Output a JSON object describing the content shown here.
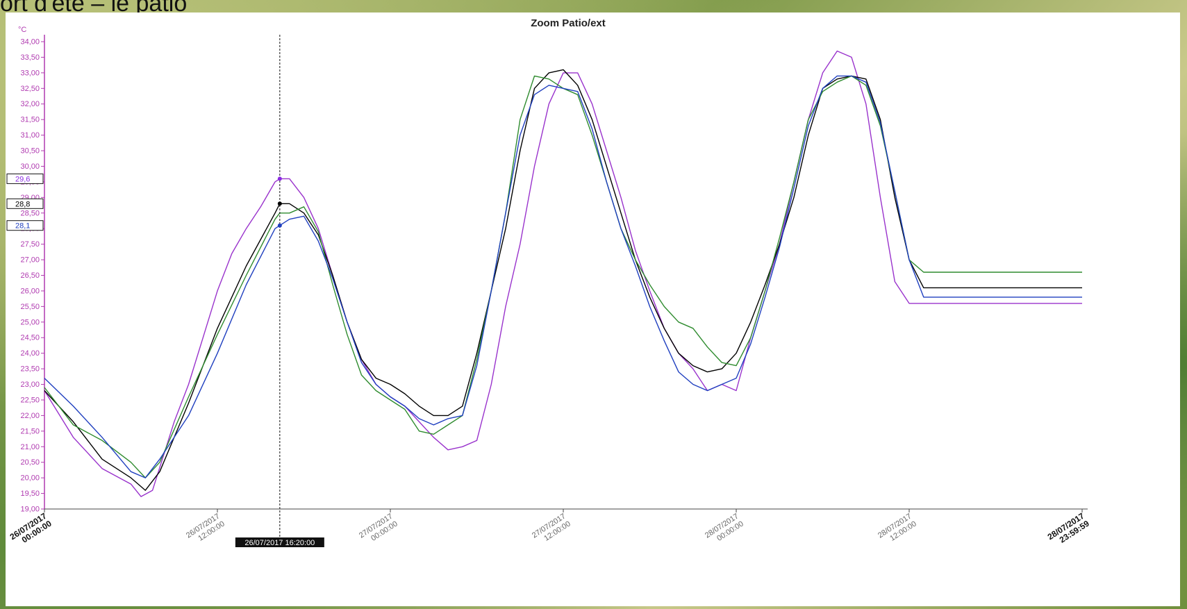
{
  "slide": {
    "heading_fragment": "ort d'été – le patio"
  },
  "chart_data": {
    "type": "line",
    "title": "Zoom Patio/ext",
    "ylabel": "°C",
    "ylim": [
      19.0,
      34.0
    ],
    "y_ticks": [
      "19,00",
      "19,50",
      "20,00",
      "20,50",
      "21,00",
      "21,50",
      "22,00",
      "22,50",
      "23,00",
      "23,50",
      "24,00",
      "24,50",
      "25,00",
      "25,50",
      "26,00",
      "26,50",
      "27,00",
      "27,50",
      "28,00",
      "28,50",
      "29,00",
      "29,50",
      "30,00",
      "30,50",
      "31,00",
      "31,50",
      "32,00",
      "32,50",
      "33,00",
      "33,50",
      "34,00"
    ],
    "x_ticks": [
      {
        "hours": 0,
        "line1": "26/07/2017",
        "line2": "00:00:00",
        "bold": true
      },
      {
        "hours": 12,
        "line1": "26/07/2017",
        "line2": "12:00:00",
        "bold": false
      },
      {
        "hours": 24,
        "line1": "27/07/2017",
        "line2": "00:00:00",
        "bold": false
      },
      {
        "hours": 36,
        "line1": "27/07/2017",
        "line2": "12:00:00",
        "bold": false
      },
      {
        "hours": 48,
        "line1": "28/07/2017",
        "line2": "00:00:00",
        "bold": false
      },
      {
        "hours": 60,
        "line1": "28/07/2017",
        "line2": "12:00:00",
        "bold": false
      },
      {
        "hours": 72,
        "line1": "28/07/2017",
        "line2": "23:59:59",
        "bold": true
      }
    ],
    "cursor": {
      "hours": 16.33,
      "label": "26/07/2017 16:20:00",
      "readouts": [
        {
          "value": "29,6",
          "y": 29.6,
          "color": "#8a2be2"
        },
        {
          "value": "28,8",
          "y": 28.8,
          "color": "#000000"
        },
        {
          "value": "28,1",
          "y": 28.1,
          "color": "#1f3fbf"
        }
      ]
    },
    "series": [
      {
        "color": "#9932cc",
        "x": [
          0,
          2,
          4,
          6,
          6.7,
          7.5,
          9,
          10,
          11,
          12,
          13,
          14,
          15,
          16,
          16.33,
          17,
          18,
          19,
          20,
          21,
          22,
          23,
          24,
          25,
          26,
          27,
          28,
          29,
          30,
          31,
          32,
          33,
          34,
          35,
          36,
          37,
          38,
          39,
          40,
          41,
          42,
          43,
          44,
          45,
          46,
          47,
          48,
          49,
          50,
          51,
          52,
          53,
          54,
          55,
          56,
          57,
          58,
          59,
          60,
          61,
          62,
          63,
          64,
          65,
          66,
          67,
          68,
          69,
          70,
          71,
          72
        ],
        "y": [
          22.8,
          21.3,
          20.3,
          19.8,
          19.4,
          19.6,
          21.8,
          23.0,
          24.5,
          26.0,
          27.2,
          28.0,
          28.7,
          29.5,
          29.6,
          29.6,
          29.0,
          28.0,
          26.5,
          25.0,
          23.8,
          23.0,
          22.6,
          22.3,
          21.8,
          21.3,
          20.9,
          21.0,
          21.2,
          23.0,
          25.5,
          27.5,
          30.0,
          32.0,
          33.0,
          33.0,
          32.0,
          30.5,
          29.0,
          27.3,
          26.0,
          24.8,
          24.0,
          23.5,
          22.8,
          23.0,
          22.8,
          24.5,
          26.0,
          27.5,
          29.5,
          31.5,
          33.0,
          33.7,
          33.5,
          32.0,
          29.0,
          26.3,
          25.6,
          25.6,
          25.6,
          25.6,
          25.6,
          25.6,
          25.6,
          25.6,
          25.6,
          25.6,
          25.6,
          25.6,
          25.6
        ]
      },
      {
        "color": "#000000",
        "x": [
          0,
          2,
          4,
          6,
          7,
          8,
          10,
          12,
          14,
          16,
          16.33,
          17,
          18,
          19,
          20,
          21,
          22,
          23,
          24,
          25,
          26,
          27,
          28,
          29,
          30,
          31,
          32,
          33,
          34,
          35,
          36,
          37,
          38,
          39,
          40,
          41,
          42,
          43,
          44,
          45,
          46,
          47,
          48,
          49,
          50,
          51,
          52,
          53,
          54,
          55,
          56,
          57,
          58,
          59,
          60,
          61,
          62,
          63,
          64,
          65,
          66,
          67,
          68,
          69,
          70,
          71,
          72
        ],
        "y": [
          22.8,
          21.8,
          20.6,
          20.0,
          19.6,
          20.2,
          22.4,
          24.8,
          26.8,
          28.5,
          28.8,
          28.8,
          28.5,
          27.8,
          26.5,
          25.0,
          23.8,
          23.2,
          23.0,
          22.7,
          22.3,
          22.0,
          22.0,
          22.3,
          24.0,
          26.0,
          28.0,
          30.5,
          32.5,
          33.0,
          33.1,
          32.6,
          31.5,
          30.0,
          28.5,
          27.0,
          25.8,
          24.8,
          24.0,
          23.6,
          23.4,
          23.5,
          24.0,
          25.0,
          26.2,
          27.5,
          29.0,
          31.0,
          32.5,
          32.8,
          32.9,
          32.8,
          31.5,
          29.0,
          27.0,
          26.1,
          26.1,
          26.1,
          26.1,
          26.1,
          26.1,
          26.1,
          26.1,
          26.1,
          26.1,
          26.1,
          26.1
        ]
      },
      {
        "color": "#2e8b2e",
        "x": [
          0,
          2,
          4,
          6,
          7,
          8,
          10,
          12,
          14,
          16,
          16.33,
          17,
          18,
          19,
          20,
          21,
          22,
          23,
          24,
          25,
          26,
          27,
          28,
          29,
          30,
          31,
          32,
          33,
          34,
          35,
          36,
          37,
          38,
          39,
          40,
          41,
          42,
          43,
          44,
          45,
          46,
          47,
          48,
          49,
          50,
          51,
          52,
          53,
          54,
          55,
          56,
          57,
          58,
          59,
          60,
          61,
          62,
          63,
          64,
          65,
          66,
          67,
          68,
          69,
          70,
          71,
          72
        ],
        "y": [
          22.9,
          21.7,
          21.2,
          20.5,
          20.0,
          20.5,
          22.6,
          24.6,
          26.5,
          28.3,
          28.5,
          28.5,
          28.7,
          27.9,
          26.2,
          24.6,
          23.3,
          22.8,
          22.5,
          22.2,
          21.5,
          21.4,
          21.7,
          22.0,
          23.8,
          26.0,
          28.5,
          31.5,
          32.9,
          32.8,
          32.5,
          32.3,
          31.0,
          29.5,
          28.0,
          27.0,
          26.2,
          25.5,
          25.0,
          24.8,
          24.2,
          23.7,
          23.6,
          24.5,
          26.0,
          27.7,
          29.5,
          31.5,
          32.4,
          32.7,
          32.9,
          32.6,
          31.3,
          29.2,
          27.0,
          26.6,
          26.6,
          26.6,
          26.6,
          26.6,
          26.6,
          26.6,
          26.6,
          26.6,
          26.6,
          26.6,
          26.6
        ]
      },
      {
        "color": "#1f3fbf",
        "x": [
          0,
          2,
          4,
          6,
          7,
          8,
          10,
          12,
          14,
          16,
          16.33,
          17,
          18,
          19,
          20,
          21,
          22,
          23,
          24,
          25,
          26,
          27,
          28,
          29,
          30,
          31,
          32,
          33,
          34,
          35,
          36,
          37,
          38,
          39,
          40,
          41,
          42,
          43,
          44,
          45,
          46,
          47,
          48,
          49,
          50,
          51,
          52,
          53,
          54,
          55,
          56,
          57,
          58,
          59,
          60,
          61,
          62,
          63,
          64,
          65,
          66,
          67,
          68,
          69,
          70,
          71,
          72
        ],
        "y": [
          23.2,
          22.3,
          21.3,
          20.2,
          20.0,
          20.6,
          22.0,
          24.0,
          26.2,
          28.0,
          28.1,
          28.3,
          28.4,
          27.6,
          26.4,
          25.0,
          23.7,
          23.0,
          22.6,
          22.3,
          21.9,
          21.7,
          21.9,
          22.0,
          23.6,
          26.0,
          28.5,
          31.0,
          32.3,
          32.6,
          32.5,
          32.4,
          31.2,
          29.5,
          28.0,
          26.8,
          25.5,
          24.4,
          23.4,
          23.0,
          22.8,
          23.0,
          23.2,
          24.3,
          25.8,
          27.4,
          29.3,
          31.3,
          32.5,
          32.9,
          32.9,
          32.7,
          31.4,
          29.2,
          27.0,
          25.8,
          25.8,
          25.8,
          25.8,
          25.8,
          25.8,
          25.8,
          25.8,
          25.8,
          25.8,
          25.8,
          25.8
        ]
      }
    ]
  }
}
